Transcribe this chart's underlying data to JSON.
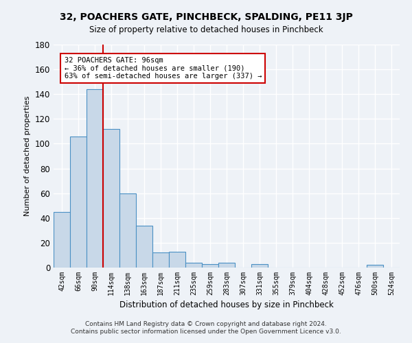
{
  "title": "32, POACHERS GATE, PINCHBECK, SPALDING, PE11 3JP",
  "subtitle": "Size of property relative to detached houses in Pinchbeck",
  "xlabel": "Distribution of detached houses by size in Pinchbeck",
  "ylabel": "Number of detached properties",
  "categories": [
    "42sqm",
    "66sqm",
    "90sqm",
    "114sqm",
    "138sqm",
    "163sqm",
    "187sqm",
    "211sqm",
    "235sqm",
    "259sqm",
    "283sqm",
    "307sqm",
    "331sqm",
    "355sqm",
    "379sqm",
    "404sqm",
    "428sqm",
    "452sqm",
    "476sqm",
    "500sqm",
    "524sqm"
  ],
  "values": [
    45,
    106,
    144,
    112,
    60,
    34,
    12,
    13,
    4,
    3,
    4,
    0,
    3,
    0,
    0,
    0,
    0,
    0,
    0,
    2,
    0
  ],
  "bar_color": "#c8d8e8",
  "bar_edge_color": "#4a90c4",
  "marker_label": "32 POACHERS GATE: 96sqm",
  "annotation_line1": "← 36% of detached houses are smaller (190)",
  "annotation_line2": "63% of semi-detached houses are larger (337) →",
  "vline_color": "#cc0000",
  "vline_index": 2,
  "ylim": [
    0,
    180
  ],
  "yticks": [
    0,
    20,
    40,
    60,
    80,
    100,
    120,
    140,
    160,
    180
  ],
  "bg_color": "#eef2f7",
  "grid_color": "#ffffff",
  "footer_line1": "Contains HM Land Registry data © Crown copyright and database right 2024.",
  "footer_line2": "Contains public sector information licensed under the Open Government Licence v3.0.",
  "box_color": "#ffffff",
  "box_edge_color": "#cc0000"
}
